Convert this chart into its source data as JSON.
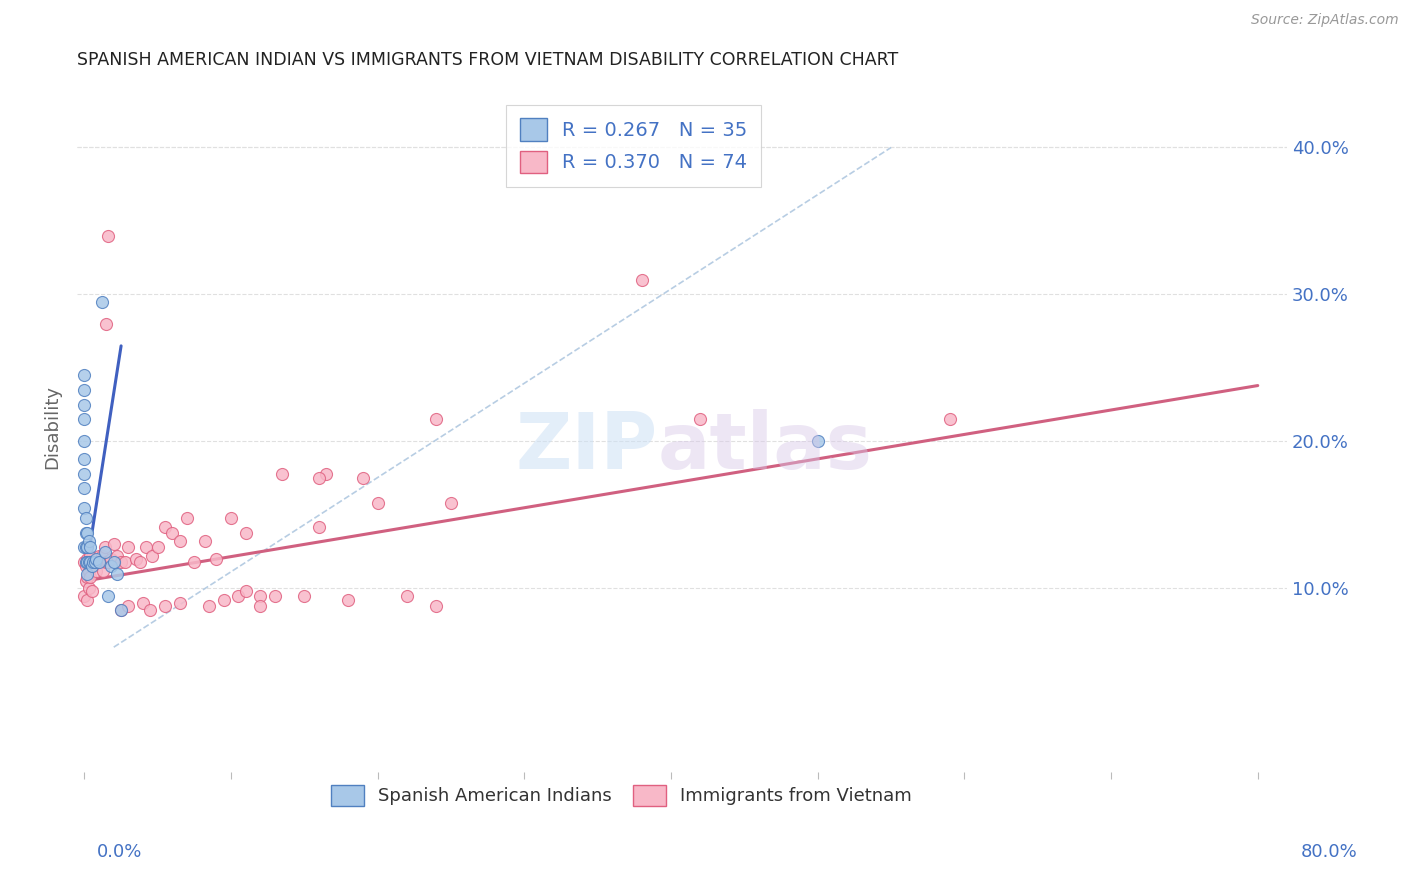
{
  "title": "SPANISH AMERICAN INDIAN VS IMMIGRANTS FROM VIETNAM DISABILITY CORRELATION CHART",
  "source": "Source: ZipAtlas.com",
  "ylabel": "Disability",
  "R_blue": 0.267,
  "N_blue": 35,
  "R_pink": 0.37,
  "N_pink": 74,
  "blue_fill": "#A8C8E8",
  "pink_fill": "#F8B8C8",
  "blue_edge": "#5080C0",
  "pink_edge": "#E06080",
  "blue_line": "#4060C0",
  "pink_line": "#D06080",
  "dashed_color": "#B0C8E0",
  "right_axis_color": "#4472C4",
  "title_color": "#222222",
  "source_color": "#999999",
  "ylabel_color": "#666666",
  "grid_color": "#E0E0E0",
  "blue_scatter_x": [
    0.0,
    0.0,
    0.0,
    0.0,
    0.0,
    0.0,
    0.0,
    0.0,
    0.0,
    0.0,
    0.001,
    0.001,
    0.001,
    0.001,
    0.002,
    0.002,
    0.002,
    0.002,
    0.003,
    0.003,
    0.004,
    0.004,
    0.005,
    0.006,
    0.007,
    0.008,
    0.01,
    0.012,
    0.014,
    0.016,
    0.018,
    0.02,
    0.022,
    0.025,
    0.5
  ],
  "blue_scatter_y": [
    0.245,
    0.235,
    0.225,
    0.215,
    0.2,
    0.188,
    0.178,
    0.168,
    0.155,
    0.128,
    0.148,
    0.138,
    0.128,
    0.118,
    0.138,
    0.128,
    0.118,
    0.11,
    0.132,
    0.118,
    0.128,
    0.118,
    0.115,
    0.118,
    0.118,
    0.12,
    0.118,
    0.295,
    0.125,
    0.095,
    0.115,
    0.118,
    0.11,
    0.085,
    0.2
  ],
  "pink_scatter_x": [
    0.0,
    0.0,
    0.001,
    0.001,
    0.002,
    0.002,
    0.002,
    0.003,
    0.003,
    0.004,
    0.004,
    0.005,
    0.005,
    0.006,
    0.007,
    0.008,
    0.009,
    0.01,
    0.011,
    0.012,
    0.013,
    0.014,
    0.015,
    0.016,
    0.018,
    0.02,
    0.022,
    0.025,
    0.028,
    0.03,
    0.035,
    0.038,
    0.042,
    0.046,
    0.05,
    0.055,
    0.06,
    0.065,
    0.07,
    0.075,
    0.082,
    0.09,
    0.1,
    0.11,
    0.12,
    0.135,
    0.15,
    0.165,
    0.18,
    0.2,
    0.22,
    0.24,
    0.016,
    0.16,
    0.25,
    0.16,
    0.38,
    0.42,
    0.015,
    0.24,
    0.59,
    0.19,
    0.025,
    0.03,
    0.04,
    0.045,
    0.055,
    0.065,
    0.085,
    0.095,
    0.105,
    0.11,
    0.12,
    0.13
  ],
  "pink_scatter_y": [
    0.118,
    0.095,
    0.115,
    0.105,
    0.12,
    0.108,
    0.092,
    0.112,
    0.1,
    0.122,
    0.108,
    0.118,
    0.098,
    0.115,
    0.118,
    0.112,
    0.118,
    0.122,
    0.118,
    0.122,
    0.112,
    0.128,
    0.118,
    0.118,
    0.12,
    0.13,
    0.122,
    0.118,
    0.118,
    0.128,
    0.12,
    0.118,
    0.128,
    0.122,
    0.128,
    0.142,
    0.138,
    0.132,
    0.148,
    0.118,
    0.132,
    0.12,
    0.148,
    0.138,
    0.095,
    0.178,
    0.095,
    0.178,
    0.092,
    0.158,
    0.095,
    0.088,
    0.34,
    0.175,
    0.158,
    0.142,
    0.31,
    0.215,
    0.28,
    0.215,
    0.215,
    0.175,
    0.085,
    0.088,
    0.09,
    0.085,
    0.088,
    0.09,
    0.088,
    0.092,
    0.095,
    0.098,
    0.088,
    0.095
  ],
  "blue_line_x": [
    0.0,
    0.025
  ],
  "blue_line_y": [
    0.105,
    0.265
  ],
  "pink_line_x": [
    0.0,
    0.8
  ],
  "pink_line_y": [
    0.105,
    0.238
  ],
  "dashed_line_x": [
    0.02,
    0.55
  ],
  "dashed_line_y": [
    0.06,
    0.4
  ],
  "xlim": [
    -0.005,
    0.82
  ],
  "ylim": [
    -0.025,
    0.445
  ],
  "x_ticks": [
    0.0,
    0.1,
    0.2,
    0.3,
    0.4,
    0.5,
    0.6,
    0.7,
    0.8
  ],
  "y_ticks": [
    0.1,
    0.2,
    0.3,
    0.4
  ],
  "y_tick_labels": [
    "10.0%",
    "20.0%",
    "30.0%",
    "40.0%"
  ]
}
